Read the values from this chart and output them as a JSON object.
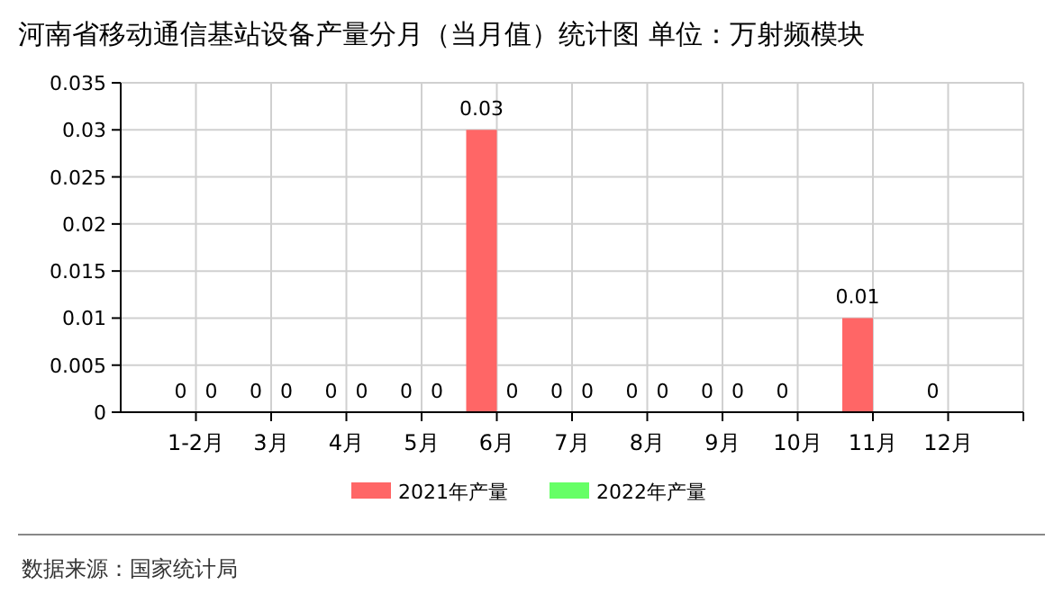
{
  "chart_data": {
    "type": "bar",
    "title": "河南省移动通信基站设备产量分月（当月值）统计图 单位：万射频模块",
    "categories": [
      "1-2月",
      "3月",
      "4月",
      "5月",
      "6月",
      "7月",
      "8月",
      "9月",
      "10月",
      "11月",
      "12月"
    ],
    "series": [
      {
        "name": "2021年产量",
        "color": "#ff6666",
        "values": [
          0,
          0,
          0,
          0,
          0.03,
          0,
          0,
          0,
          0,
          0.01,
          0
        ]
      },
      {
        "name": "2022年产量",
        "color": "#66ff66",
        "values": [
          0,
          0,
          0,
          0,
          0,
          0,
          0,
          0,
          null,
          null,
          null
        ]
      }
    ],
    "ylim": [
      0,
      0.035
    ],
    "yticks": [
      0,
      0.005,
      0.01,
      0.015,
      0.02,
      0.025,
      0.03,
      0.035
    ],
    "grid": true,
    "legend": "bottom",
    "data_labels": true,
    "annotations": [
      "数据来源：国家统计局"
    ]
  }
}
